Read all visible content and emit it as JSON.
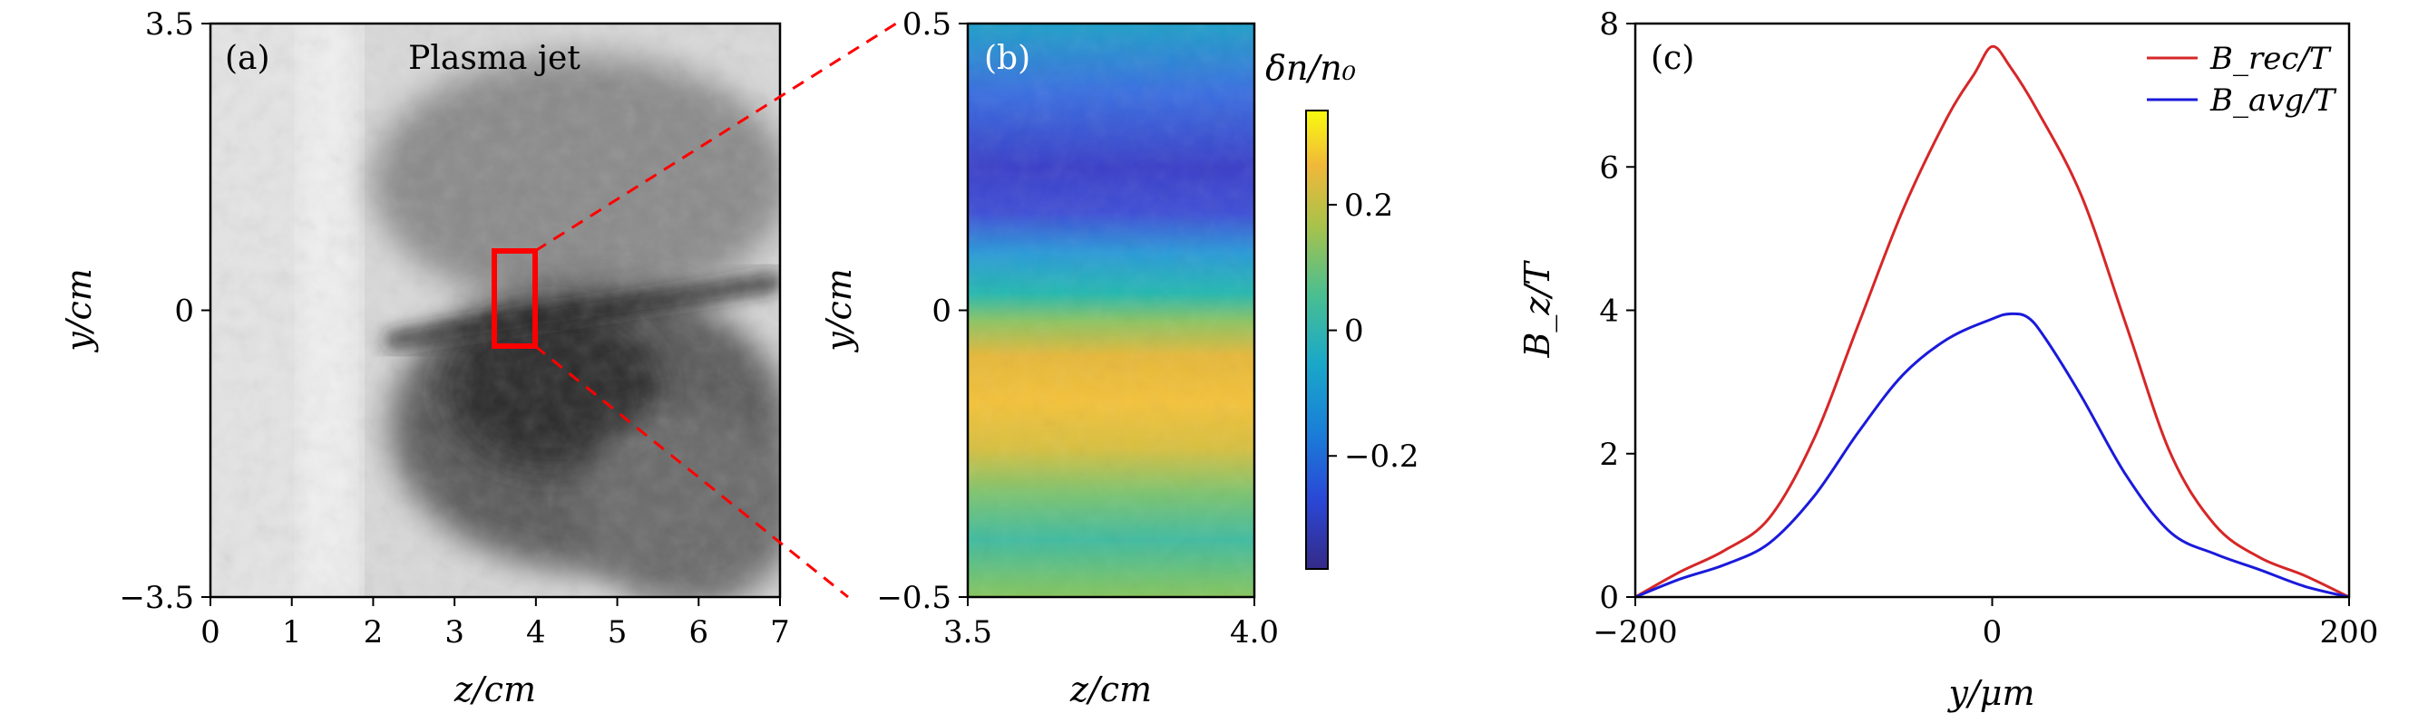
{
  "panels": {
    "a": {
      "label": "(a)",
      "title": "Plasma jet",
      "xlabel": "z/cm",
      "ylabel": "y/cm",
      "xticks": [
        "0",
        "1",
        "2",
        "3",
        "4",
        "5",
        "6",
        "7"
      ],
      "yticks": [
        "3.5",
        "0",
        "−3.5"
      ]
    },
    "b": {
      "label": "(b)",
      "xlabel": "z/cm",
      "ylabel": "y/cm",
      "xticks": [
        "3.5",
        "4.0"
      ],
      "yticks": [
        "0.5",
        "0",
        "−0.5"
      ],
      "colorbar_title": "δn/n₀",
      "colorbar_ticks": [
        "0.2",
        "0",
        "−0.2"
      ]
    },
    "c": {
      "label": "(c)",
      "xlabel": "y/μm",
      "ylabel": "B_z/T",
      "xticks": [
        "−200",
        "0",
        "200"
      ],
      "yticks": [
        "0",
        "2",
        "4",
        "6",
        "8"
      ]
    }
  },
  "colors": {
    "rec": "#d62728",
    "avg": "#1a1adb",
    "box": "#ff0000"
  },
  "chart_data": [
    {
      "type": "heatmap",
      "panel": "a",
      "description_source": "shadowgraph image",
      "xlim": [
        0,
        7
      ],
      "ylim": [
        -3.5,
        3.5
      ],
      "highlight_region": {
        "z": [
          3.5,
          4.0
        ],
        "y": [
          -0.5,
          0.5
        ]
      }
    },
    {
      "type": "heatmap",
      "panel": "b",
      "xlim": [
        3.5,
        4.0
      ],
      "ylim": [
        -0.5,
        0.5
      ],
      "colorbar_range": [
        -0.38,
        0.35
      ],
      "row_profile_y": [
        0.5,
        0.4,
        0.3,
        0.2,
        0.1,
        0.05,
        0.0,
        -0.05,
        -0.1,
        -0.2,
        -0.3,
        -0.4,
        -0.5
      ],
      "row_profile_value": [
        -0.15,
        -0.2,
        -0.27,
        -0.33,
        -0.25,
        -0.12,
        0.0,
        0.18,
        0.25,
        0.28,
        0.22,
        0.12,
        0.1
      ]
    },
    {
      "type": "line",
      "panel": "c",
      "xlim": [
        -200,
        200
      ],
      "ylim": [
        0,
        8
      ],
      "series": [
        {
          "name": "B_rec/T",
          "x": [
            -200,
            -175,
            -150,
            -125,
            -100,
            -75,
            -50,
            -25,
            -10,
            0,
            10,
            25,
            50,
            75,
            100,
            125,
            150,
            175,
            200
          ],
          "y": [
            0.0,
            0.35,
            0.65,
            1.1,
            2.2,
            3.8,
            5.4,
            6.7,
            7.3,
            7.68,
            7.4,
            6.8,
            5.6,
            3.8,
            2.0,
            1.0,
            0.55,
            0.3,
            0.0
          ]
        },
        {
          "name": "B_avg/T",
          "x": [
            -200,
            -175,
            -150,
            -125,
            -100,
            -75,
            -50,
            -25,
            0,
            10,
            20,
            30,
            50,
            75,
            100,
            125,
            150,
            175,
            200
          ],
          "y": [
            0.0,
            0.25,
            0.45,
            0.75,
            1.4,
            2.3,
            3.1,
            3.6,
            3.88,
            3.95,
            3.9,
            3.6,
            2.8,
            1.7,
            0.9,
            0.6,
            0.38,
            0.15,
            0.0
          ]
        }
      ]
    }
  ]
}
